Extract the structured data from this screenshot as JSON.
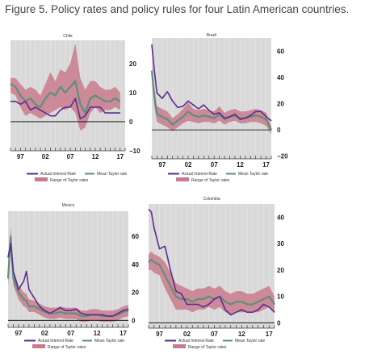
{
  "figure_title": "Figure 5. Policy rates and policy rules for four Latin American countries.",
  "colors": {
    "actual": "#5b2d8e",
    "mean": "#5f8f7a",
    "range": "#c97a8c",
    "plot_bg": "#d9d9d9",
    "grid": "#ffffff"
  },
  "chart_data": [
    {
      "type": "line",
      "title": "Chile",
      "x_tick_labels": [
        "97",
        "02",
        "07",
        "12",
        "17"
      ],
      "x_ticks": [
        1997,
        2002,
        2007,
        2012,
        2017
      ],
      "xlim": [
        1995,
        2018
      ],
      "ylim": [
        -10,
        28
      ],
      "y_ticks": [
        -10,
        0,
        10,
        20
      ],
      "y_tick_labels": [
        "−10",
        "0",
        "10",
        "20"
      ],
      "legend": {
        "actual": "Actual Interest Rate",
        "mean": "Mean Taylor rate",
        "range": "Range of Taylor rates"
      },
      "series": [
        {
          "name": "Actual Interest Rate",
          "x": [
            1995,
            1996,
            1997,
            1998,
            1999,
            2000,
            2001,
            2002,
            2003,
            2004,
            2005,
            2006,
            2007,
            2008,
            2009,
            2010,
            2011,
            2012,
            2013,
            2014,
            2015,
            2016,
            2017
          ],
          "values": [
            7,
            7,
            6,
            7,
            4,
            5,
            4,
            3,
            2,
            2,
            4,
            5,
            5,
            8,
            1,
            2,
            5,
            5,
            5,
            3,
            3,
            3,
            3
          ]
        },
        {
          "name": "Mean Taylor rate",
          "x": [
            1995,
            1996,
            1997,
            1998,
            1999,
            2000,
            2001,
            2002,
            2003,
            2004,
            2005,
            2006,
            2007,
            2008,
            2009,
            2010,
            2011,
            2012,
            2013,
            2014,
            2015,
            2016,
            2017
          ],
          "values": [
            13,
            12,
            9,
            7,
            8,
            6,
            5,
            8,
            10,
            9,
            12,
            10,
            12,
            14,
            6,
            3,
            8,
            9,
            8,
            7,
            7,
            8,
            7
          ]
        },
        {
          "name": "Range of Taylor rates",
          "x": [
            1995,
            1996,
            1997,
            1998,
            1999,
            2000,
            2001,
            2002,
            2003,
            2004,
            2005,
            2006,
            2007,
            2008,
            2009,
            2010,
            2011,
            2012,
            2013,
            2014,
            2015,
            2016,
            2017
          ],
          "low": [
            10,
            9,
            5,
            2,
            3,
            2,
            1,
            2,
            3,
            4,
            5,
            4,
            5,
            3,
            -3,
            -2,
            3,
            5,
            3,
            4,
            4,
            5,
            4
          ],
          "high": [
            15,
            15,
            13,
            11,
            12,
            11,
            9,
            13,
            17,
            14,
            18,
            17,
            20,
            27,
            15,
            11,
            14,
            14,
            12,
            11,
            11,
            12,
            10
          ]
        }
      ]
    },
    {
      "type": "line",
      "title": "Brazil",
      "x_tick_labels": [
        "97",
        "02",
        "07",
        "12",
        "17"
      ],
      "x_ticks": [
        1997,
        2002,
        2007,
        2012,
        2017
      ],
      "xlim": [
        1995,
        2018
      ],
      "ylim": [
        -22,
        70
      ],
      "y_ticks": [
        -20,
        0,
        20,
        40,
        60
      ],
      "y_tick_labels": [
        "−20",
        "0",
        "20",
        "40",
        "60"
      ],
      "legend": {
        "actual": "Actual Interest Rate",
        "mean": "Mean Taylor rate",
        "range": "Range of Taylor rates"
      },
      "series": [
        {
          "name": "Actual Interest Rate",
          "x": [
            1995,
            1995.5,
            1996,
            1997,
            1998,
            1999,
            2000,
            2001,
            2002,
            2003,
            2004,
            2005,
            2006,
            2007,
            2008,
            2009,
            2010,
            2011,
            2012,
            2013,
            2014,
            2015,
            2016,
            2017,
            2018
          ],
          "values": [
            65,
            45,
            28,
            24,
            29,
            22,
            17,
            18,
            22,
            19,
            16,
            19,
            15,
            12,
            13,
            9,
            10,
            12,
            8,
            9,
            11,
            14,
            14,
            10,
            7
          ]
        },
        {
          "name": "Mean Taylor rate",
          "x": [
            1995,
            1995.5,
            1996,
            1997,
            1998,
            1999,
            2000,
            2001,
            2002,
            2003,
            2004,
            2005,
            2006,
            2007,
            2008,
            2009,
            2010,
            2011,
            2012,
            2013,
            2014,
            2015,
            2016,
            2017,
            2018
          ],
          "values": [
            45,
            25,
            12,
            10,
            8,
            4,
            7,
            10,
            14,
            11,
            10,
            11,
            10,
            9,
            12,
            8,
            10,
            11,
            9,
            9,
            10,
            11,
            10,
            8,
            0
          ]
        },
        {
          "name": "Range of Taylor rates",
          "x": [
            1995,
            1995.5,
            1996,
            1997,
            1998,
            1999,
            2000,
            2001,
            2002,
            2003,
            2004,
            2005,
            2006,
            2007,
            2008,
            2009,
            2010,
            2011,
            2012,
            2013,
            2014,
            2015,
            2016,
            2017,
            2018
          ],
          "low": [
            40,
            18,
            6,
            4,
            2,
            -1,
            2,
            5,
            7,
            6,
            5,
            6,
            6,
            5,
            7,
            4,
            6,
            7,
            5,
            5,
            6,
            6,
            5,
            3,
            -3
          ],
          "high": [
            50,
            32,
            18,
            16,
            14,
            9,
            12,
            16,
            21,
            16,
            15,
            16,
            15,
            14,
            18,
            13,
            15,
            16,
            14,
            14,
            15,
            16,
            15,
            13,
            3
          ]
        }
      ]
    },
    {
      "type": "line",
      "title": "Mexico",
      "x_tick_labels": [
        "97",
        "02",
        "07",
        "12",
        "17"
      ],
      "x_ticks": [
        1997,
        2002,
        2007,
        2012,
        2017
      ],
      "xlim": [
        1995,
        2018
      ],
      "ylim": [
        -5,
        78
      ],
      "y_ticks": [
        0,
        20,
        40,
        60
      ],
      "y_tick_labels": [
        "0",
        "20",
        "40",
        "60"
      ],
      "legend": {
        "actual": "Actual Interest Rate",
        "mean": "Mean Taylor rate",
        "range": "Range of Taylor rates"
      },
      "series": [
        {
          "name": "Actual Interest Rate",
          "x": [
            1995,
            1995.5,
            1996,
            1997,
            1998,
            1998.5,
            1999,
            2000,
            2001,
            2002,
            2003,
            2004,
            2005,
            2006,
            2007,
            2008,
            2009,
            2010,
            2011,
            2012,
            2013,
            2014,
            2015,
            2016,
            2017,
            2018
          ],
          "values": [
            45,
            55,
            35,
            22,
            28,
            35,
            22,
            16,
            10,
            7,
            5,
            7,
            9,
            7,
            7,
            8,
            5,
            4,
            4,
            4,
            4,
            3,
            3,
            5,
            7,
            8
          ]
        },
        {
          "name": "Mean Taylor rate",
          "x": [
            1995,
            1995.5,
            1996,
            1997,
            1998,
            1998.5,
            1999,
            2000,
            2001,
            2002,
            2003,
            2004,
            2005,
            2006,
            2007,
            2008,
            2009,
            2010,
            2011,
            2012,
            2013,
            2014,
            2015,
            2016,
            2017,
            2018
          ],
          "values": [
            30,
            60,
            30,
            20,
            15,
            14,
            10,
            10,
            8,
            6,
            5,
            5,
            6,
            5,
            5,
            5,
            3,
            3,
            4,
            4,
            3,
            3,
            3,
            4,
            6,
            7
          ]
        },
        {
          "name": "Range of Taylor rates",
          "x": [
            1995,
            1995.5,
            1996,
            1997,
            1998,
            1998.5,
            1999,
            2000,
            2001,
            2002,
            2003,
            2004,
            2005,
            2006,
            2007,
            2008,
            2009,
            2010,
            2011,
            2012,
            2013,
            2014,
            2015,
            2016,
            2017,
            2018
          ],
          "low": [
            25,
            50,
            25,
            15,
            10,
            9,
            6,
            6,
            4,
            2,
            1,
            1,
            2,
            1,
            1,
            1,
            -1,
            -1,
            0,
            0,
            -1,
            -1,
            -1,
            0,
            2,
            3
          ],
          "high": [
            35,
            66,
            36,
            25,
            20,
            19,
            15,
            14,
            12,
            10,
            9,
            9,
            10,
            9,
            9,
            9,
            7,
            7,
            8,
            8,
            7,
            7,
            7,
            8,
            10,
            11
          ]
        }
      ]
    },
    {
      "type": "line",
      "title": "Colombia",
      "x_tick_labels": [
        "97",
        "02",
        "07",
        "12",
        "17"
      ],
      "x_ticks": [
        1997,
        2002,
        2007,
        2012,
        2017
      ],
      "xlim": [
        1995,
        2018
      ],
      "ylim": [
        -2,
        45
      ],
      "y_ticks": [
        0,
        10,
        20,
        30,
        40
      ],
      "y_tick_labels": [
        "0",
        "10",
        "20",
        "30",
        "40"
      ],
      "legend": {
        "actual": "Actual Interest Rate",
        "mean": "Mean Taylor rate",
        "range": "Range of Taylor rates"
      },
      "series": [
        {
          "name": "Actual Interest Rate",
          "x": [
            1995,
            1995.5,
            1996,
            1997,
            1998,
            1999,
            2000,
            2001,
            2002,
            2003,
            2004,
            2005,
            2006,
            2007,
            2008,
            2009,
            2010,
            2011,
            2012,
            2013,
            2014,
            2015,
            2016,
            2017,
            2018
          ],
          "values": [
            43,
            42,
            36,
            28,
            29,
            20,
            12,
            11,
            7,
            7,
            7,
            6,
            7,
            9,
            10,
            5,
            3,
            4,
            5,
            4,
            4,
            5,
            7,
            6,
            4
          ]
        },
        {
          "name": "Mean Taylor rate",
          "x": [
            1995,
            1995.5,
            1996,
            1997,
            1998,
            1999,
            2000,
            2001,
            2002,
            2003,
            2004,
            2005,
            2006,
            2007,
            2008,
            2009,
            2010,
            2011,
            2012,
            2013,
            2014,
            2015,
            2016,
            2017,
            2018
          ],
          "values": [
            23,
            24,
            23,
            22,
            18,
            14,
            10,
            9,
            9,
            8,
            9,
            9,
            10,
            9,
            10,
            8,
            7,
            8,
            8,
            7,
            7,
            8,
            9,
            10,
            7
          ]
        },
        {
          "name": "Range of Taylor rates",
          "x": [
            1995,
            1995.5,
            1996,
            1997,
            1998,
            1999,
            2000,
            2001,
            2002,
            2003,
            2004,
            2005,
            2006,
            2007,
            2008,
            2009,
            2010,
            2011,
            2012,
            2013,
            2014,
            2015,
            2016,
            2017,
            2018
          ],
          "low": [
            20,
            20,
            19,
            18,
            13,
            9,
            5,
            5,
            5,
            4,
            5,
            5,
            6,
            5,
            6,
            4,
            3,
            4,
            4,
            4,
            4,
            4,
            5,
            6,
            4
          ],
          "high": [
            26,
            27,
            26,
            25,
            23,
            19,
            15,
            14,
            13,
            12,
            13,
            13,
            14,
            13,
            14,
            12,
            11,
            12,
            12,
            11,
            11,
            12,
            13,
            14,
            10
          ]
        }
      ]
    }
  ]
}
